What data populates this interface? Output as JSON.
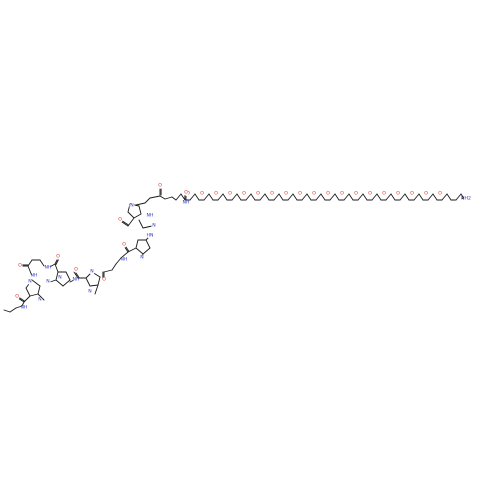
{
  "figure": {
    "type": "chemical-structure",
    "colors": {
      "bond": "#1a1a1a",
      "oxygen": "#e0261d",
      "nitrogen": "#2b36c9",
      "background": "#ffffff"
    }
  },
  "labels": {
    "oxygen": "O",
    "amide_nh": "NH",
    "ring_n": "N",
    "amine": "NH2",
    "hn": "HN"
  }
}
